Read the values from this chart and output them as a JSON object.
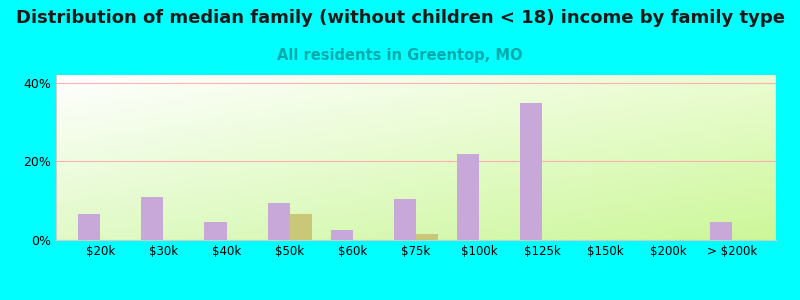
{
  "title": "Distribution of median family (without children < 18) income by family type",
  "subtitle": "All residents in Greentop, MO",
  "subtitle_color": "#00aaaa",
  "categories": [
    "$20k",
    "$30k",
    "$40k",
    "$50k",
    "$60k",
    "$75k",
    "$100k",
    "$125k",
    "$150k",
    "$200k",
    "> $200k"
  ],
  "married_couple": [
    6.5,
    11.0,
    4.5,
    9.5,
    2.5,
    10.5,
    22.0,
    35.0,
    0.0,
    0.0,
    4.5
  ],
  "female_no_husband": [
    0.0,
    0.0,
    0.0,
    6.5,
    0.0,
    1.5,
    0.0,
    0.0,
    0.0,
    0.0,
    0.0
  ],
  "married_color": "#c8a8d8",
  "female_color": "#c8c878",
  "ylim": [
    0,
    42
  ],
  "yticks": [
    0,
    20,
    40
  ],
  "yticklabels": [
    "0%",
    "20%",
    "40%"
  ],
  "background_outer": "#00ffff",
  "grid_color": "#ffb0b0",
  "bar_width": 0.35,
  "title_fontsize": 13,
  "subtitle_fontsize": 10.5
}
